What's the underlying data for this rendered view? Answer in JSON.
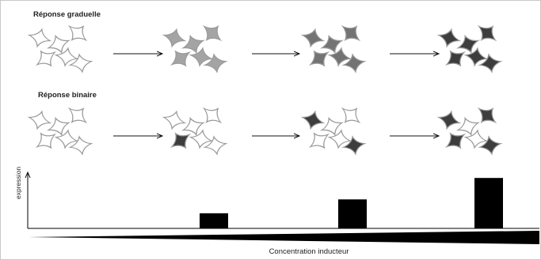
{
  "rows": {
    "graduelle": {
      "label": "Réponse graduelle",
      "stages": [
        [
          "#ffffff",
          "#ffffff",
          "#ffffff",
          "#ffffff",
          "#ffffff",
          "#ffffff"
        ],
        [
          "#a4a4a4",
          "#a4a4a4",
          "#a4a4a4",
          "#a4a4a4",
          "#a4a4a4",
          "#a4a4a4"
        ],
        [
          "#737373",
          "#737373",
          "#737373",
          "#737373",
          "#737373",
          "#737373"
        ],
        [
          "#3d3d3d",
          "#3d3d3d",
          "#3d3d3d",
          "#3d3d3d",
          "#3d3d3d",
          "#3d3d3d"
        ]
      ]
    },
    "binaire": {
      "label": "Réponse binaire",
      "stages": [
        [
          "#ffffff",
          "#ffffff",
          "#ffffff",
          "#ffffff",
          "#ffffff",
          "#ffffff"
        ],
        [
          "#ffffff",
          "#ffffff",
          "#ffffff",
          "#3d3d3d",
          "#ffffff",
          "#ffffff"
        ],
        [
          "#3d3d3d",
          "#ffffff",
          "#ffffff",
          "#ffffff",
          "#ffffff",
          "#3d3d3d"
        ],
        [
          "#3d3d3d",
          "#ffffff",
          "#3d3d3d",
          "#3d3d3d",
          "#ffffff",
          "#3d3d3d"
        ]
      ]
    }
  },
  "chart_data": {
    "type": "bar",
    "categories": [
      "",
      "",
      "",
      ""
    ],
    "values": [
      0,
      1.2,
      2.3,
      4.0
    ],
    "ylim": [
      0,
      4.2
    ],
    "ylabel": "expression",
    "xlabel": "Concentration inducteur"
  },
  "colors": {
    "bar": "#000000",
    "outline": "#9a9a9a",
    "arrow": "#111111"
  }
}
